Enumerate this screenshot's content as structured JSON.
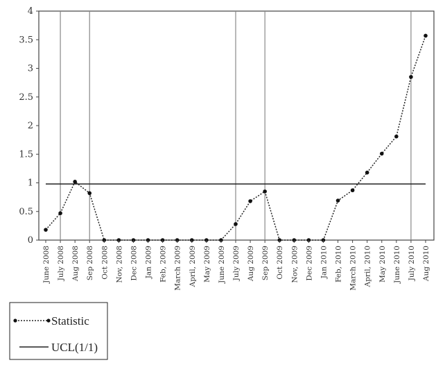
{
  "chart_data": {
    "type": "line",
    "categories": [
      "June 2008",
      "July 2008",
      "Aug 2008",
      "Sep 2008",
      "Oct 2008",
      "Nov, 2008",
      "Dec 2008",
      "Jan 2009",
      "Feb, 2009",
      "March 2009",
      "April, 2009",
      "May 2009",
      "June 2009",
      "July 2009",
      "Aug 2009",
      "Sep 2009",
      "Oct 2009",
      "Nov, 2009",
      "Dec 2009",
      "Jan 2010",
      "Feb, 2010",
      "March 2010",
      "April, 2010",
      "May 2010",
      "June 2010",
      "July 2010",
      "Aug 2010"
    ],
    "series": [
      {
        "name": "Statistic",
        "style": "dotted-with-markers",
        "values": [
          0.18,
          0.47,
          1.02,
          0.82,
          0,
          0,
          0,
          0,
          0,
          0,
          0,
          0,
          0,
          0.28,
          0.68,
          0.85,
          0,
          0,
          0,
          0,
          0.69,
          0.87,
          1.18,
          1.51,
          1.81,
          2.85,
          3.57
        ]
      },
      {
        "name": "UCL(1/1)",
        "style": "solid",
        "values": [
          0.98,
          0.98,
          0.98,
          0.98,
          0.98,
          0.98,
          0.98,
          0.98,
          0.98,
          0.98,
          0.98,
          0.98,
          0.98,
          0.98,
          0.98,
          0.98,
          0.98,
          0.98,
          0.98,
          0.98,
          0.98,
          0.98,
          0.98,
          0.98,
          0.98,
          0.98,
          0.98
        ]
      }
    ],
    "vertical_markers": [
      "July 2008",
      "Sep 2008",
      "July 2009",
      "Sep 2009",
      "July 2010"
    ],
    "yticks": [
      "0",
      "0.5",
      "1",
      "1.5",
      "2",
      "2.5",
      "3",
      "3.5",
      "4"
    ],
    "ylim": [
      0,
      4
    ],
    "grid": false,
    "legend_position": "bottom-left",
    "colors": {
      "line": "#222222",
      "marker": "#111111",
      "frame": "#444444",
      "marker_lines": "#888888"
    }
  }
}
